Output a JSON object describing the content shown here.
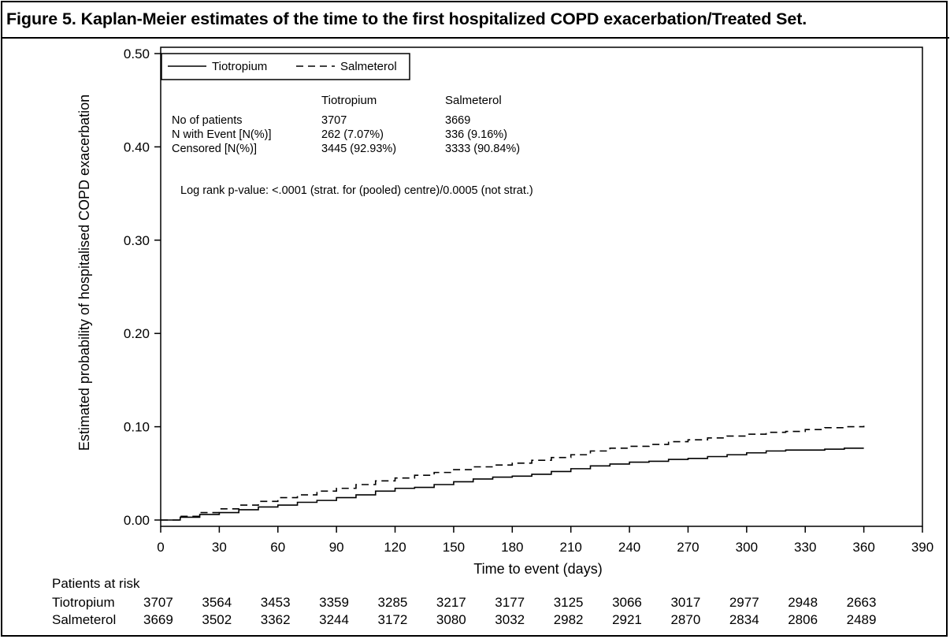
{
  "title": "Figure 5. Kaplan-Meier estimates of the time to the first hospitalized COPD exacerbation/Treated Set.",
  "chart_data": {
    "type": "line",
    "xlabel": "Time to event (days)",
    "ylabel": "Estimated probability of hospitalised COPD exacerbation",
    "xlim": [
      0,
      390
    ],
    "ylim": [
      0,
      0.5
    ],
    "x_ticks": [
      0,
      30,
      60,
      90,
      120,
      150,
      180,
      210,
      240,
      270,
      300,
      330,
      360,
      390
    ],
    "y_ticks": [
      0.0,
      0.1,
      0.2,
      0.3,
      0.4,
      0.5
    ],
    "y_tick_labels": [
      "0.00",
      "0.10",
      "0.20",
      "0.30",
      "0.40",
      "0.50"
    ],
    "grid": false,
    "legend_position": "top-left",
    "series": [
      {
        "name": "Tiotropium",
        "line_style": "solid",
        "points": [
          [
            0,
            0
          ],
          [
            10,
            0.003
          ],
          [
            20,
            0.006
          ],
          [
            30,
            0.008
          ],
          [
            40,
            0.011
          ],
          [
            50,
            0.014
          ],
          [
            60,
            0.016
          ],
          [
            70,
            0.019
          ],
          [
            80,
            0.021
          ],
          [
            90,
            0.024
          ],
          [
            100,
            0.027
          ],
          [
            110,
            0.031
          ],
          [
            120,
            0.034
          ],
          [
            130,
            0.035
          ],
          [
            140,
            0.038
          ],
          [
            150,
            0.041
          ],
          [
            160,
            0.044
          ],
          [
            170,
            0.046
          ],
          [
            180,
            0.047
          ],
          [
            190,
            0.049
          ],
          [
            200,
            0.052
          ],
          [
            210,
            0.055
          ],
          [
            220,
            0.058
          ],
          [
            230,
            0.06
          ],
          [
            240,
            0.062
          ],
          [
            250,
            0.063
          ],
          [
            260,
            0.065
          ],
          [
            270,
            0.066
          ],
          [
            280,
            0.068
          ],
          [
            290,
            0.07
          ],
          [
            300,
            0.072
          ],
          [
            310,
            0.074
          ],
          [
            320,
            0.075
          ],
          [
            330,
            0.075
          ],
          [
            340,
            0.076
          ],
          [
            350,
            0.077
          ],
          [
            360,
            0.077
          ]
        ]
      },
      {
        "name": "Salmeterol",
        "line_style": "dashed",
        "points": [
          [
            0,
            0
          ],
          [
            10,
            0.004
          ],
          [
            20,
            0.008
          ],
          [
            30,
            0.012
          ],
          [
            40,
            0.016
          ],
          [
            50,
            0.02
          ],
          [
            60,
            0.024
          ],
          [
            70,
            0.027
          ],
          [
            80,
            0.031
          ],
          [
            90,
            0.034
          ],
          [
            100,
            0.038
          ],
          [
            110,
            0.042
          ],
          [
            120,
            0.045
          ],
          [
            130,
            0.048
          ],
          [
            140,
            0.051
          ],
          [
            150,
            0.054
          ],
          [
            160,
            0.057
          ],
          [
            170,
            0.059
          ],
          [
            180,
            0.061
          ],
          [
            190,
            0.064
          ],
          [
            200,
            0.067
          ],
          [
            210,
            0.07
          ],
          [
            220,
            0.074
          ],
          [
            230,
            0.077
          ],
          [
            240,
            0.079
          ],
          [
            250,
            0.081
          ],
          [
            260,
            0.084
          ],
          [
            270,
            0.086
          ],
          [
            280,
            0.088
          ],
          [
            290,
            0.09
          ],
          [
            300,
            0.092
          ],
          [
            310,
            0.094
          ],
          [
            320,
            0.095
          ],
          [
            330,
            0.097
          ],
          [
            340,
            0.099
          ],
          [
            350,
            0.1
          ],
          [
            360,
            0.101
          ]
        ]
      }
    ],
    "stats_table": {
      "col_headers": [
        "Tiotropium",
        "Salmeterol"
      ],
      "rows": [
        {
          "label": "No of patients",
          "values": [
            "3707",
            "3669"
          ]
        },
        {
          "label": "N with Event [N(%)]",
          "values": [
            "262 (7.07%)",
            "336 (9.16%)"
          ]
        },
        {
          "label": "Censored [N(%)]",
          "values": [
            "3445 (92.93%)",
            "3333 (90.84%)"
          ]
        }
      ]
    },
    "annotation": "Log rank p-value: <.0001 (strat. for (pooled) centre)/0.0005 (not strat.)",
    "risk_table": {
      "heading": "Patients at risk",
      "rows": [
        {
          "label": "Tiotropium",
          "values": [
            "3707",
            "3564",
            "3453",
            "3359",
            "3285",
            "3217",
            "3177",
            "3125",
            "3066",
            "3017",
            "2977",
            "2948",
            "2663"
          ]
        },
        {
          "label": "Salmeterol",
          "values": [
            "3669",
            "3502",
            "3362",
            "3244",
            "3172",
            "3080",
            "3032",
            "2982",
            "2921",
            "2870",
            "2834",
            "2806",
            "2489"
          ]
        }
      ]
    }
  }
}
